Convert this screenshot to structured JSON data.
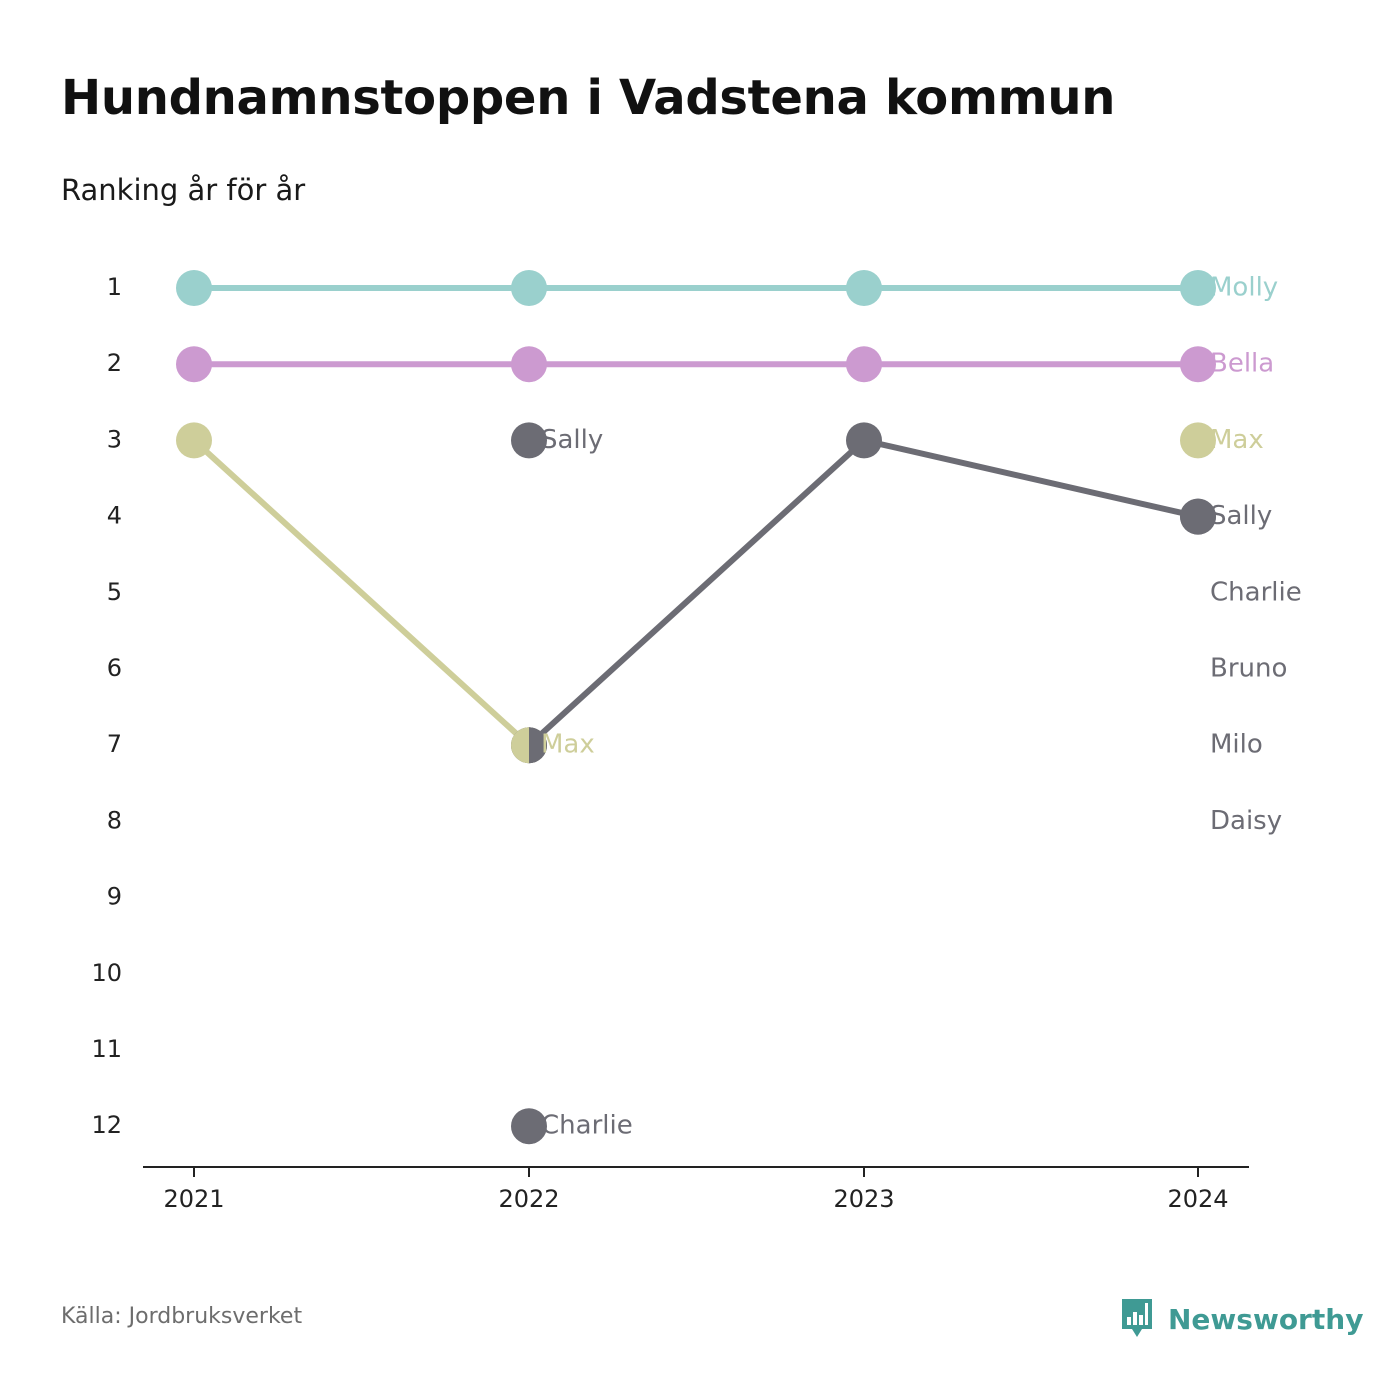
{
  "header": {
    "title": "Hundnamnstoppen i Vadstena kommun",
    "subtitle": "Ranking år för år"
  },
  "footer": {
    "source": "Källa: Jordbruksverket",
    "brand_name": "Newsworthy",
    "brand_icon": "newsworthy-logo-icon",
    "brand_color": "#3f9a94"
  },
  "chart_data": {
    "type": "line",
    "subtype": "rank-bump",
    "years": [
      "2021",
      "2022",
      "2023",
      "2024"
    ],
    "y_ticks": [
      "1",
      "2",
      "3",
      "4",
      "5",
      "6",
      "7",
      "8",
      "9",
      "10",
      "11",
      "12"
    ],
    "ylim": [
      1,
      12
    ],
    "y_inverted": true,
    "grid": false,
    "series": [
      {
        "name": "Molly",
        "color": "#9ad0cd",
        "ranks": [
          1,
          1,
          1,
          1
        ],
        "labels": [
          null,
          null,
          null,
          "Molly"
        ]
      },
      {
        "name": "Bella",
        "color": "#cc9ad0",
        "ranks": [
          2,
          2,
          2,
          2
        ],
        "labels": [
          null,
          null,
          null,
          "Bella"
        ]
      },
      {
        "name": "Max",
        "color": "#cece9a",
        "ranks": [
          3,
          7,
          null,
          3
        ],
        "labels": [
          null,
          "Max",
          null,
          "Max"
        ]
      },
      {
        "name": "Sally",
        "color": "#6c6c74",
        "ranks": [
          null,
          3,
          null,
          4
        ],
        "labels": [
          null,
          "Sally",
          null,
          "Sally"
        ]
      },
      {
        "name": "Charlie",
        "color": "#6c6c74",
        "ranks": [
          null,
          12,
          null,
          null
        ],
        "labels": [
          null,
          "Charlie",
          null,
          null
        ]
      },
      {
        "name": "",
        "color": "#6c6c74",
        "ranks": [
          null,
          7,
          3,
          4
        ],
        "labels": [
          null,
          null,
          null,
          null
        ]
      }
    ],
    "rank_labels_2024": [
      {
        "rank": 5,
        "name": "Charlie"
      },
      {
        "rank": 6,
        "name": "Bruno"
      },
      {
        "rank": 7,
        "name": "Milo"
      },
      {
        "rank": 8,
        "name": "Daisy"
      }
    ],
    "label_color": "#6c6c74"
  }
}
